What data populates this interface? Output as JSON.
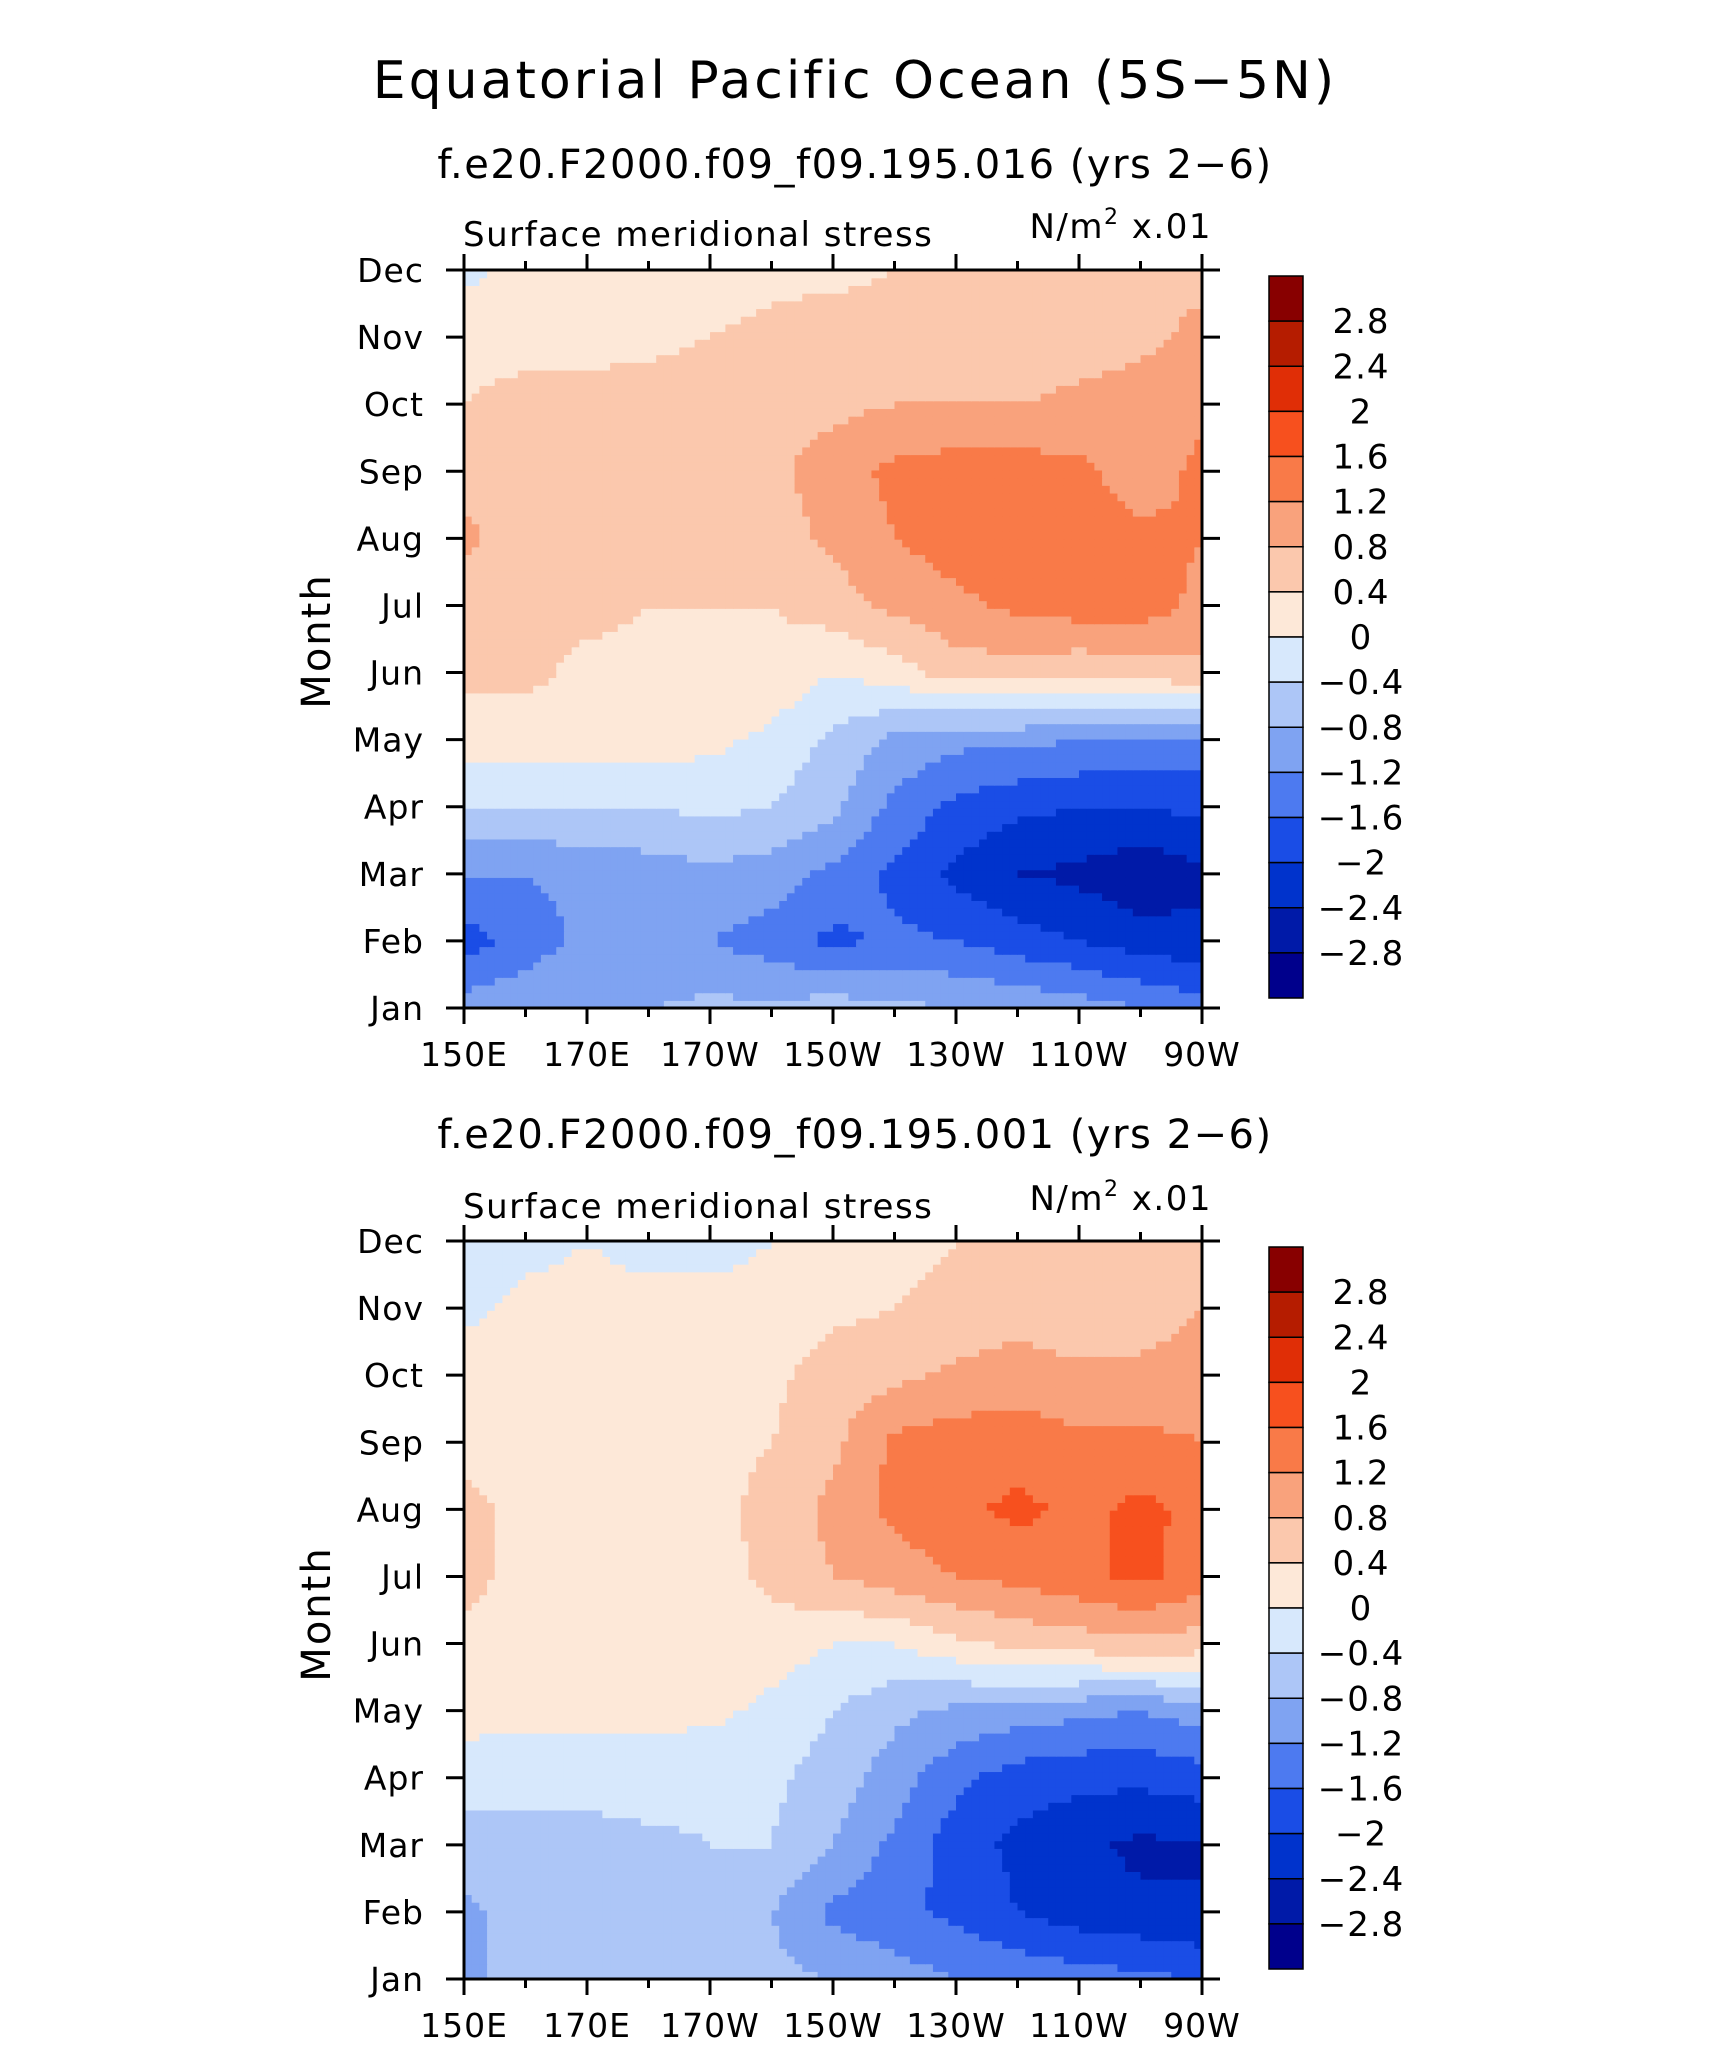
{
  "page": {
    "title": "Equatorial Pacific Ocean (5S−5N)"
  },
  "colors": {
    "levels": [
      "#00008c",
      "#001aa8",
      "#0033cc",
      "#1a4de6",
      "#4d7af0",
      "#7fa3f2",
      "#adc6f7",
      "#d7e8fc",
      "#fde8d8",
      "#fbc8ad",
      "#f9a27c",
      "#f97a48",
      "#f7501e",
      "#e02e06",
      "#b51c00",
      "#880000"
    ]
  },
  "chart_data": [
    {
      "type": "heatmap",
      "subtitle": "f.e20.F2000.f09_f09.195.016 (yrs 2−6)",
      "left_label": "Surface meridional stress",
      "right_label_prefix": "N/m",
      "right_label_exp": "2",
      "right_label_suffix": " x.01",
      "ylabel": "Month",
      "x_ticks": [
        "150E",
        "170E",
        "170W",
        "150W",
        "130W",
        "110W",
        "90W"
      ],
      "x_lon": [
        150,
        170,
        190,
        210,
        230,
        250,
        270
      ],
      "xlim": [
        150,
        270
      ],
      "y_ticks": [
        "Jan",
        "Feb",
        "Mar",
        "Apr",
        "May",
        "Jun",
        "Jul",
        "Aug",
        "Sep",
        "Oct",
        "Nov",
        "Dec"
      ],
      "colorbar_labels": [
        "2.8",
        "2.4",
        "2",
        "1.6",
        "1.2",
        "0.8",
        "0.4",
        "0",
        "−0.4",
        "−0.8",
        "−1.2",
        "−1.6",
        "−2",
        "−2.4",
        "−2.8"
      ],
      "colorbar_levels": [
        -2.8,
        -2.4,
        -2.0,
        -1.6,
        -1.2,
        -0.8,
        -0.4,
        0,
        0.4,
        0.8,
        1.2,
        1.6,
        2.0,
        2.4,
        2.8
      ],
      "grid": false,
      "z": [
        [
          -1.0,
          -0.9,
          -0.8,
          -0.8,
          -0.7,
          -0.7,
          -0.6,
          -0.7,
          -0.8,
          -0.9,
          -1.0,
          -1.2,
          -1.4
        ],
        [
          -1.8,
          -1.4,
          -1.1,
          -1.1,
          -1.2,
          -1.4,
          -1.7,
          -1.5,
          -1.6,
          -1.8,
          -2.0,
          -2.2,
          -2.3
        ],
        [
          -1.2,
          -1.2,
          -1.1,
          -1.0,
          -0.9,
          -1.0,
          -1.3,
          -1.7,
          -2.1,
          -2.4,
          -2.5,
          -2.7,
          -2.5
        ],
        [
          -0.4,
          -0.4,
          -0.4,
          -0.4,
          -0.3,
          -0.4,
          -0.7,
          -1.3,
          -1.7,
          -1.9,
          -2.0,
          -2.0,
          -1.9
        ],
        [
          0.2,
          0.2,
          0.2,
          0.2,
          0.1,
          -0.1,
          -0.5,
          -0.9,
          -1.1,
          -1.1,
          -1.2,
          -1.3,
          -1.3
        ],
        [
          0.5,
          0.5,
          0.3,
          0.3,
          0.3,
          0.3,
          0.0,
          0.2,
          0.6,
          0.6,
          0.5,
          0.6,
          0.7
        ],
        [
          0.5,
          0.5,
          0.5,
          0.4,
          0.4,
          0.4,
          0.6,
          0.9,
          1.1,
          1.3,
          1.4,
          1.4,
          1.1
        ],
        [
          0.9,
          0.6,
          0.6,
          0.5,
          0.6,
          0.6,
          0.9,
          1.2,
          1.4,
          1.4,
          1.4,
          1.3,
          1.2
        ],
        [
          0.6,
          0.6,
          0.6,
          0.6,
          0.6,
          0.7,
          1.0,
          1.3,
          1.4,
          1.4,
          1.3,
          1.0,
          1.3
        ],
        [
          0.4,
          0.5,
          0.5,
          0.6,
          0.6,
          0.7,
          0.7,
          0.8,
          0.8,
          0.8,
          0.9,
          1.0,
          1.1
        ],
        [
          0.3,
          0.3,
          0.3,
          0.3,
          0.4,
          0.5,
          0.6,
          0.6,
          0.5,
          0.5,
          0.6,
          0.7,
          0.9
        ],
        [
          -0.1,
          0.1,
          0.1,
          0.1,
          0.2,
          0.3,
          0.3,
          0.4,
          0.5,
          0.5,
          0.6,
          0.7,
          0.7
        ]
      ]
    },
    {
      "type": "heatmap",
      "subtitle": "f.e20.F2000.f09_f09.195.001 (yrs 2−6)",
      "left_label": "Surface meridional stress",
      "right_label_prefix": "N/m",
      "right_label_exp": "2",
      "right_label_suffix": " x.01",
      "ylabel": "Month",
      "x_ticks": [
        "150E",
        "170E",
        "170W",
        "150W",
        "130W",
        "110W",
        "90W"
      ],
      "x_lon": [
        150,
        170,
        190,
        210,
        230,
        250,
        270
      ],
      "xlim": [
        150,
        270
      ],
      "y_ticks": [
        "Jan",
        "Feb",
        "Mar",
        "Apr",
        "May",
        "Jun",
        "Jul",
        "Aug",
        "Sep",
        "Oct",
        "Nov",
        "Dec"
      ],
      "colorbar_labels": [
        "2.8",
        "2.4",
        "2",
        "1.6",
        "1.2",
        "0.8",
        "0.4",
        "0",
        "−0.4",
        "−0.8",
        "−1.2",
        "−1.6",
        "−2",
        "−2.4",
        "−2.8"
      ],
      "colorbar_levels": [
        -2.8,
        -2.4,
        -2.0,
        -1.6,
        -1.2,
        -0.8,
        -0.4,
        0,
        0.4,
        0.8,
        1.2,
        1.6,
        2.0,
        2.4,
        2.8
      ],
      "grid": false,
      "z": [
        [
          -0.9,
          -0.6,
          -0.6,
          -0.6,
          -0.5,
          -0.7,
          -0.8,
          -1.0,
          -1.2,
          -1.3,
          -1.4,
          -1.5,
          -1.6
        ],
        [
          -0.9,
          -0.6,
          -0.6,
          -0.6,
          -0.6,
          -0.8,
          -1.3,
          -1.5,
          -1.7,
          -2.0,
          -2.2,
          -2.3,
          -2.4
        ],
        [
          -0.5,
          -0.6,
          -0.6,
          -0.5,
          -0.4,
          -0.4,
          -0.8,
          -1.3,
          -1.8,
          -2.1,
          -2.3,
          -2.5,
          -2.4
        ],
        [
          -0.3,
          -0.2,
          -0.2,
          -0.2,
          -0.3,
          -0.3,
          -0.6,
          -1.0,
          -1.5,
          -1.8,
          -1.9,
          -1.9,
          -1.8
        ],
        [
          0.2,
          0.1,
          0.1,
          0.1,
          0.1,
          -0.1,
          -0.4,
          -0.7,
          -0.9,
          -1.0,
          -1.1,
          -1.2,
          -1.0
        ],
        [
          0.3,
          0.2,
          0.2,
          0.2,
          0.2,
          0.2,
          0.0,
          0.0,
          0.3,
          0.5,
          0.6,
          0.7,
          0.6
        ],
        [
          0.5,
          0.3,
          0.2,
          0.2,
          0.2,
          0.5,
          0.8,
          1.0,
          1.2,
          1.3,
          1.5,
          1.7,
          1.4
        ],
        [
          0.5,
          0.3,
          0.2,
          0.2,
          0.2,
          0.6,
          0.9,
          1.3,
          1.5,
          1.7,
          1.5,
          1.7,
          1.5
        ],
        [
          0.3,
          0.2,
          0.2,
          0.2,
          0.2,
          0.4,
          0.7,
          1.3,
          1.4,
          1.4,
          1.3,
          1.3,
          1.2
        ],
        [
          0.2,
          0.2,
          0.2,
          0.2,
          0.2,
          0.3,
          0.6,
          0.7,
          0.9,
          1.0,
          0.9,
          0.9,
          1.0
        ],
        [
          -0.1,
          0.1,
          0.1,
          0.1,
          0.2,
          0.2,
          0.3,
          0.4,
          0.5,
          0.6,
          0.5,
          0.6,
          0.8
        ],
        [
          -0.2,
          -0.1,
          0.0,
          -0.1,
          -0.2,
          0.0,
          0.2,
          0.3,
          0.4,
          0.5,
          0.4,
          0.5,
          0.6
        ]
      ]
    }
  ]
}
